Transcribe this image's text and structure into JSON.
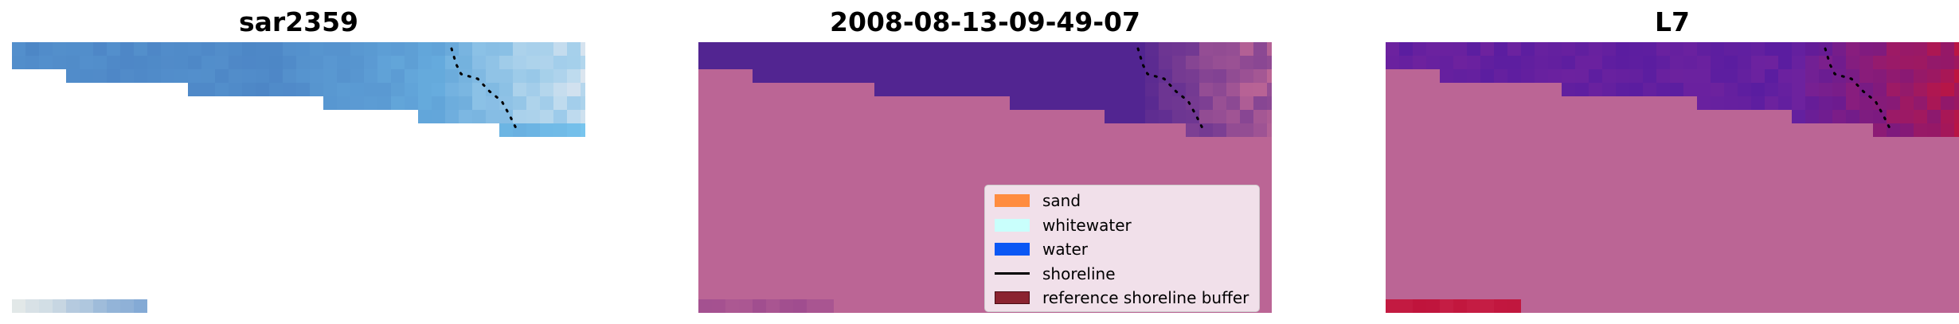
{
  "figure": {
    "panels": [
      {
        "title": "sar2359"
      },
      {
        "title": "2008-08-13-09-49-07"
      },
      {
        "title": "L7"
      }
    ]
  },
  "colors": {
    "nodata": "#bb6595",
    "water_dark": "#522591",
    "rgb_blue": "#4d86c6",
    "ndwi_purple": "#5a1da0",
    "ndwi_red": "#c0143c",
    "shoreline": "#000000"
  },
  "legend": {
    "items": [
      {
        "label": "sand",
        "color": "#ff8c3f",
        "kind": "patch"
      },
      {
        "label": "whitewater",
        "color": "#c9fffc",
        "kind": "patch"
      },
      {
        "label": "water",
        "color": "#0b57f4",
        "kind": "patch"
      },
      {
        "label": "shoreline",
        "color": "#000000",
        "kind": "line"
      },
      {
        "label": "reference shoreline buffer",
        "color": "#8b2330",
        "kind": "patch-outline"
      }
    ]
  }
}
